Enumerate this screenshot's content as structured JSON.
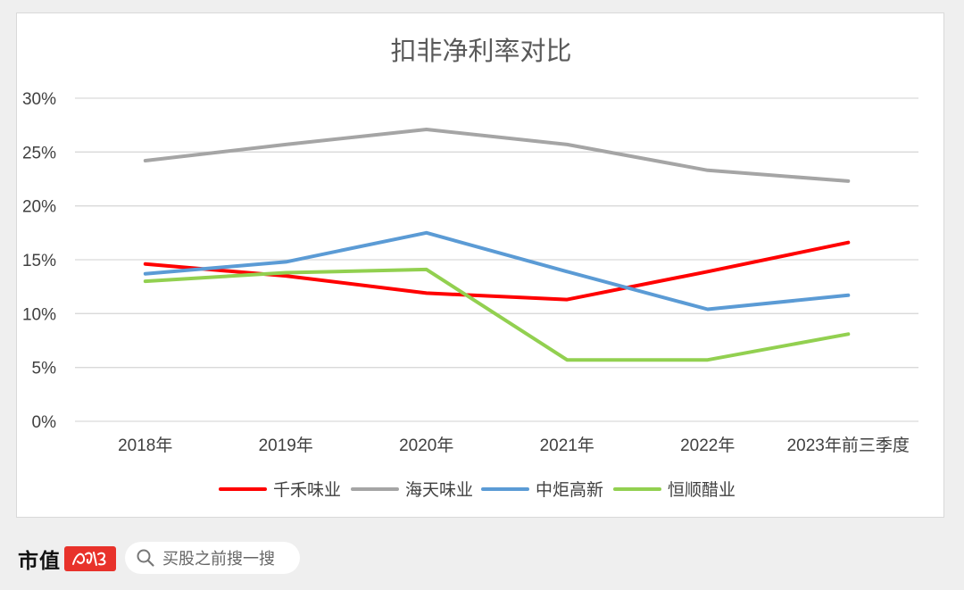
{
  "chart_data": {
    "type": "line",
    "title": "扣非净利率对比",
    "categories": [
      "2018年",
      "2019年",
      "2020年",
      "2021年",
      "2022年",
      "2023年前三季度"
    ],
    "yticks": [
      "0%",
      "5%",
      "10%",
      "15%",
      "20%",
      "25%",
      "30%"
    ],
    "ylim": [
      0,
      30
    ],
    "grid": true,
    "legend_position": "bottom",
    "series": [
      {
        "name": "千禾味业",
        "color": "#ff0000",
        "values": [
          14.6,
          13.5,
          11.9,
          11.3,
          13.9,
          16.6
        ]
      },
      {
        "name": "海天味业",
        "color": "#a5a5a5",
        "values": [
          24.2,
          25.7,
          27.1,
          25.7,
          23.3,
          22.3
        ]
      },
      {
        "name": "中炬高新",
        "color": "#5b9bd5",
        "values": [
          13.7,
          14.8,
          17.5,
          13.9,
          10.4,
          11.7
        ]
      },
      {
        "name": "恒顺醋业",
        "color": "#92d050",
        "values": [
          13.0,
          13.8,
          14.1,
          5.7,
          5.7,
          8.1
        ]
      }
    ]
  },
  "footer": {
    "brand": "市值",
    "brand_badge": "风云",
    "search_placeholder": "买股之前搜一搜"
  }
}
